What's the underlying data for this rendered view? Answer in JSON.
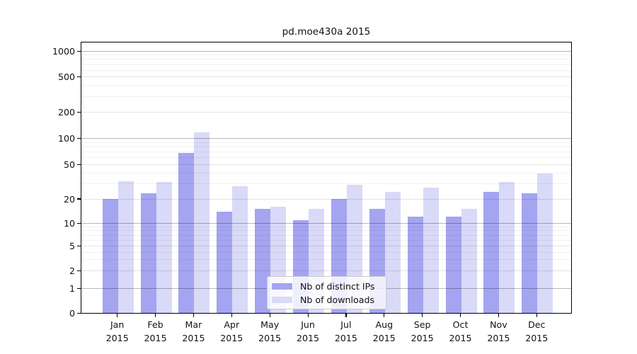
{
  "title": "pd.moe430a 2015",
  "chart_data": {
    "type": "bar",
    "title": "pd.moe430a 2015",
    "categories": [
      "Jan",
      "Feb",
      "Mar",
      "Apr",
      "May",
      "Jun",
      "Jul",
      "Aug",
      "Sep",
      "Oct",
      "Nov",
      "Dec"
    ],
    "category_year": "2015",
    "series": [
      {
        "name": "Nb of distinct IPs",
        "color": "#a4a4f0",
        "values": [
          20,
          23,
          68,
          14,
          15,
          11,
          20,
          15,
          12,
          12,
          24,
          23
        ]
      },
      {
        "name": "Nb of downloads",
        "color": "#d9d9f8",
        "values": [
          32,
          31,
          117,
          28,
          16,
          15,
          29,
          24,
          27,
          15,
          31,
          39
        ]
      }
    ],
    "yscale": "log-like",
    "yticks": [
      0,
      1,
      2,
      5,
      10,
      20,
      50,
      100,
      200,
      500,
      1000
    ],
    "ylim": [
      0,
      1300
    ],
    "grid": true,
    "legend_position": "lower-center"
  },
  "colors": {
    "bar_distinct_ips": "#a4a4f0",
    "bar_downloads": "#d9d9f8",
    "grid_decade": "rgba(0,0,0,0.28)",
    "grid_mid": "rgba(0,0,0,0.11)",
    "grid_minor": "rgba(0,0,0,0.055)",
    "frame": "#000000"
  }
}
